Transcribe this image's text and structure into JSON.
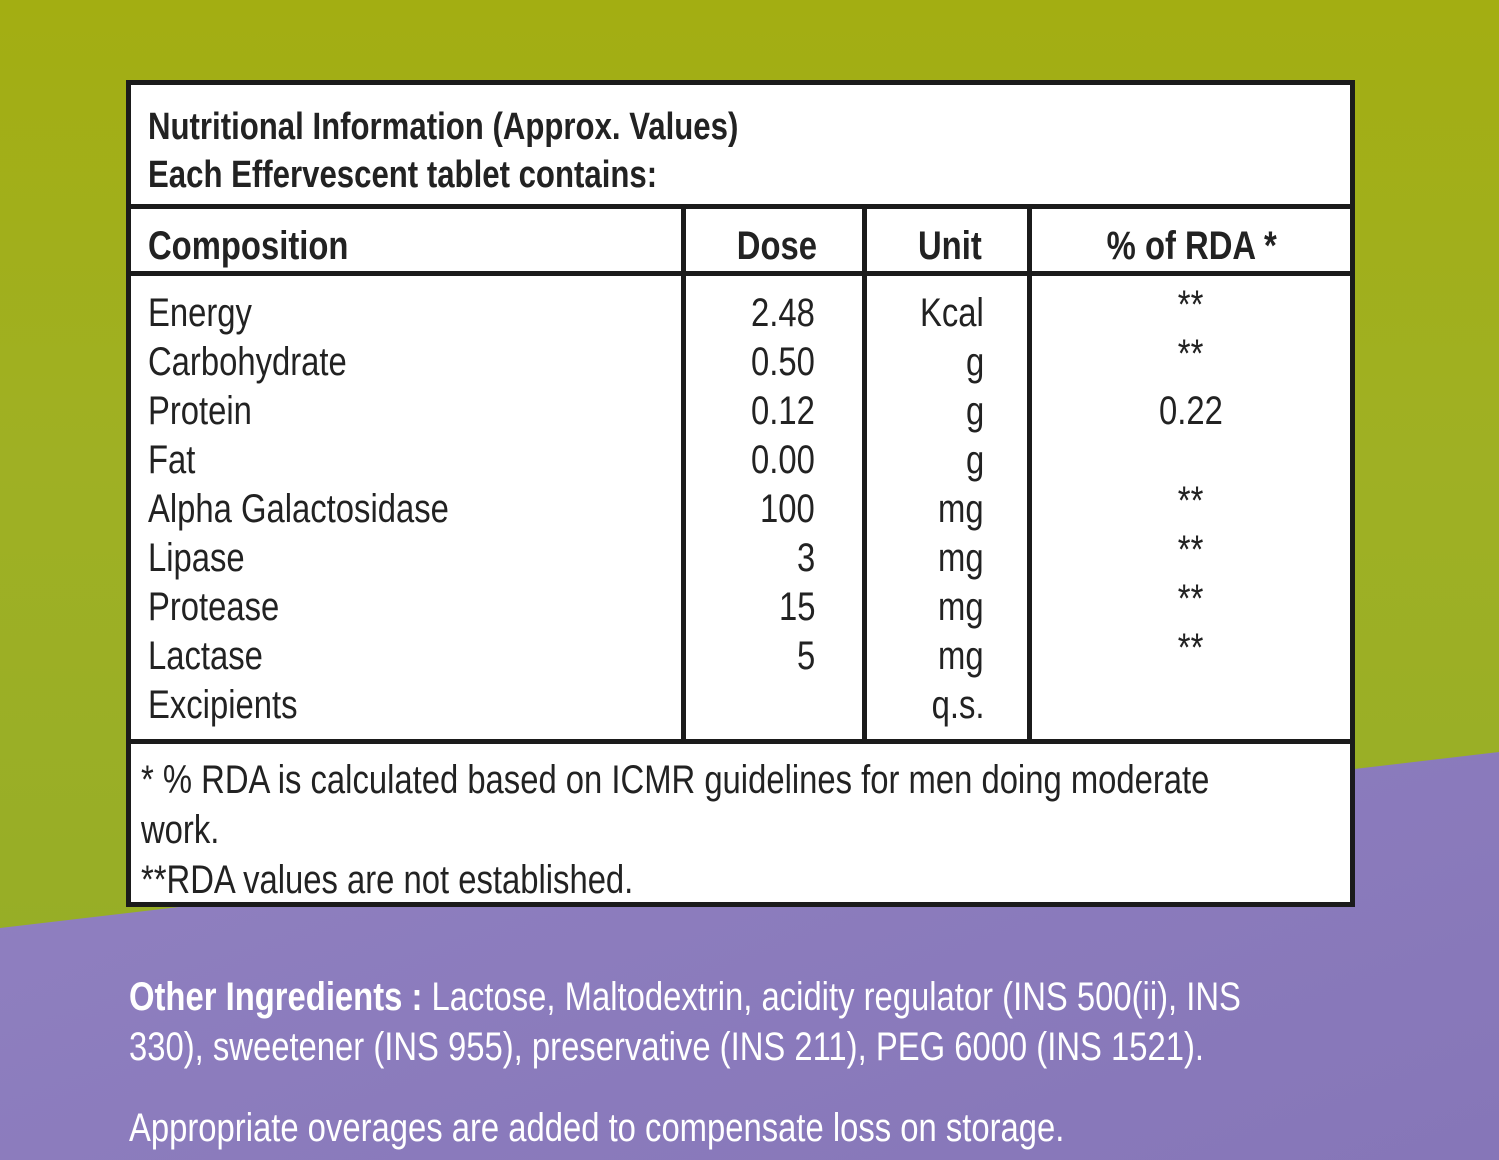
{
  "header": {
    "title": "Nutritional Information (Approx. Values)",
    "subtitle": "Each Effervescent tablet contains:"
  },
  "columns": {
    "composition": "Composition",
    "dose": "Dose",
    "unit": "Unit",
    "rda": "% of RDA *"
  },
  "rows": [
    {
      "name": "Energy",
      "dose": "2.48",
      "unit": "Kcal",
      "rda": "**"
    },
    {
      "name": "Carbohydrate",
      "dose": "0.50",
      "unit": "g",
      "rda": "**"
    },
    {
      "name": "Protein",
      "dose": "0.12",
      "unit": "g",
      "rda": "0.22"
    },
    {
      "name": "Fat",
      "dose": "0.00",
      "unit": "g",
      "rda": ""
    },
    {
      "name": "Alpha Galactosidase",
      "dose": "100",
      "unit": "mg",
      "rda": "**"
    },
    {
      "name": "Lipase",
      "dose": "3",
      "unit": "mg",
      "rda": "**"
    },
    {
      "name": "Protease",
      "dose": "15",
      "unit": "mg",
      "rda": "**"
    },
    {
      "name": "Lactase",
      "dose": "5",
      "unit": "mg",
      "rda": "**"
    },
    {
      "name": "Excipients",
      "dose": "",
      "unit": "q.s.",
      "rda": ""
    }
  ],
  "footnotes": {
    "line1": "* % RDA is calculated based on ICMR guidelines for men doing moderate",
    "line2": "work.",
    "line3": "**RDA values are not established."
  },
  "other_ingredients": {
    "label": "Other Ingredients :",
    "line1": "Lactose, Maltodextrin, acidity regulator (INS 500(ii), INS",
    "line2": "330), sweetener (INS 955), preservative (INS 211), PEG 6000 (INS 1521)."
  },
  "overage_note": "Appropriate overages are added to compensate loss on storage.",
  "colors": {
    "green": "#a3ae12",
    "purple": "#8676b8",
    "border": "#1b1b1b"
  }
}
